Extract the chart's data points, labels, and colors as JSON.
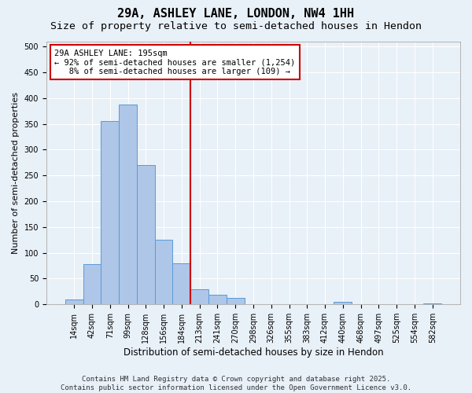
{
  "title": "29A, ASHLEY LANE, LONDON, NW4 1HH",
  "subtitle": "Size of property relative to semi-detached houses in Hendon",
  "xlabel": "Distribution of semi-detached houses by size in Hendon",
  "ylabel": "Number of semi-detached properties",
  "bin_labels": [
    "14sqm",
    "42sqm",
    "71sqm",
    "99sqm",
    "128sqm",
    "156sqm",
    "184sqm",
    "213sqm",
    "241sqm",
    "270sqm",
    "298sqm",
    "326sqm",
    "355sqm",
    "383sqm",
    "412sqm",
    "440sqm",
    "468sqm",
    "497sqm",
    "525sqm",
    "554sqm",
    "582sqm"
  ],
  "bar_heights": [
    10,
    78,
    355,
    388,
    270,
    125,
    80,
    30,
    18,
    13,
    0,
    0,
    0,
    0,
    0,
    5,
    0,
    0,
    0,
    0,
    2
  ],
  "bar_color": "#aec6e8",
  "bar_edge_color": "#5b9bd5",
  "background_color": "#e8f0f8",
  "grid_color": "#ffffff",
  "vline_color": "#cc0000",
  "annotation_line1": "29A ASHLEY LANE: 195sqm",
  "annotation_line2": "← 92% of semi-detached houses are smaller (1,254)",
  "annotation_line3": "   8% of semi-detached houses are larger (109) →",
  "annotation_box_color": "#ffffff",
  "annotation_edge_color": "#cc0000",
  "ylim": [
    0,
    510
  ],
  "yticks": [
    0,
    50,
    100,
    150,
    200,
    250,
    300,
    350,
    400,
    450,
    500
  ],
  "footnote": "Contains HM Land Registry data © Crown copyright and database right 2025.\nContains public sector information licensed under the Open Government Licence v3.0.",
  "title_fontsize": 11,
  "subtitle_fontsize": 9.5,
  "ylabel_fontsize": 8,
  "xlabel_fontsize": 8.5,
  "tick_fontsize": 7,
  "annotation_fontsize": 7.5,
  "footnote_fontsize": 6.5
}
